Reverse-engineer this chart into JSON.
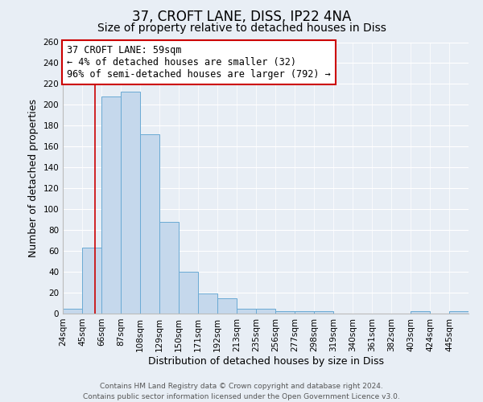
{
  "title": "37, CROFT LANE, DISS, IP22 4NA",
  "subtitle": "Size of property relative to detached houses in Diss",
  "xlabel": "Distribution of detached houses by size in Diss",
  "ylabel": "Number of detached properties",
  "bin_labels": [
    "24sqm",
    "45sqm",
    "66sqm",
    "87sqm",
    "108sqm",
    "129sqm",
    "150sqm",
    "171sqm",
    "192sqm",
    "213sqm",
    "235sqm",
    "256sqm",
    "277sqm",
    "298sqm",
    "319sqm",
    "340sqm",
    "361sqm",
    "382sqm",
    "403sqm",
    "424sqm",
    "445sqm"
  ],
  "bar_values": [
    5,
    63,
    208,
    213,
    172,
    88,
    40,
    19,
    15,
    5,
    5,
    2,
    2,
    2,
    0,
    0,
    0,
    0,
    2,
    0,
    2
  ],
  "bar_color": "#c5d8ec",
  "bar_edge_color": "#6aaad4",
  "background_color": "#e8eef5",
  "grid_color": "#ffffff",
  "annotation_line_color": "#cc0000",
  "annotation_box_text": "37 CROFT LANE: 59sqm\n← 4% of detached houses are smaller (32)\n96% of semi-detached houses are larger (792) →",
  "annotation_box_edge_color": "#cc0000",
  "ylim": [
    0,
    260
  ],
  "yticks": [
    0,
    20,
    40,
    60,
    80,
    100,
    120,
    140,
    160,
    180,
    200,
    220,
    240,
    260
  ],
  "bin_sqm": [
    24,
    45,
    66,
    87,
    108,
    129,
    150,
    171,
    192,
    213,
    235,
    256,
    277,
    298,
    319,
    340,
    361,
    382,
    403,
    424,
    445
  ],
  "property_sqm": 59,
  "footer_line1": "Contains HM Land Registry data © Crown copyright and database right 2024.",
  "footer_line2": "Contains public sector information licensed under the Open Government Licence v3.0.",
  "title_fontsize": 12,
  "subtitle_fontsize": 10,
  "annotation_fontsize": 8.5,
  "axis_label_fontsize": 9,
  "tick_fontsize": 7.5,
  "footer_fontsize": 6.5
}
